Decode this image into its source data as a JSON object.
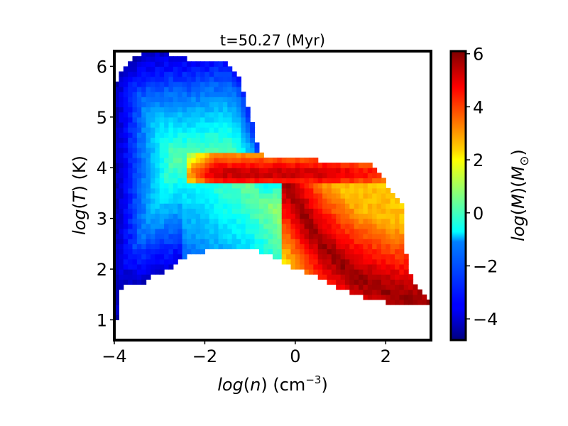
{
  "chart_data": {
    "type": "heatmap",
    "title": "t=50.27 (Myr)",
    "xlabel": "log(n) (cm⁻³)",
    "ylabel": "log(T) (K)",
    "colorbar_label": "log(M) (M☉)",
    "xlim": [
      -4,
      3
    ],
    "ylim": [
      0.6,
      6.3
    ],
    "clim": [
      -4.8,
      6.1
    ],
    "xticks": [
      -4,
      -2,
      0,
      2
    ],
    "xtick_labels": [
      "−4",
      "−2",
      "0",
      "2"
    ],
    "yticks": [
      1,
      2,
      3,
      4,
      5,
      6
    ],
    "ytick_labels": [
      "1",
      "2",
      "3",
      "4",
      "5",
      "6"
    ],
    "cticks": [
      -4,
      -2,
      0,
      2,
      4,
      6
    ],
    "ctick_labels": [
      "−4",
      "−2",
      "0",
      "2",
      "4",
      "6"
    ],
    "colormap": "jet",
    "grid": false,
    "regions": {
      "hot_halo": {
        "logn_range": [
          -4,
          -1.1
        ],
        "logT_range": [
          2.3,
          6.2
        ],
        "logM_range": [
          -4.5,
          0.5
        ]
      },
      "warm_branch": {
        "logn_range": [
          -2.4,
          2.2
        ],
        "logT_range": [
          3.7,
          4.2
        ],
        "logM_range": [
          1,
          6
        ]
      },
      "cooling_ridge": {
        "logn_range": [
          -0.3,
          3
        ],
        "logT_range": [
          1.3,
          4
        ],
        "logM_range": [
          3.5,
          6
        ]
      },
      "cold_tail": {
        "logn_range": [
          2.0,
          3.0
        ],
        "logT_range": [
          1.3,
          1.6
        ],
        "logM_range": [
          3,
          5
        ]
      }
    }
  }
}
